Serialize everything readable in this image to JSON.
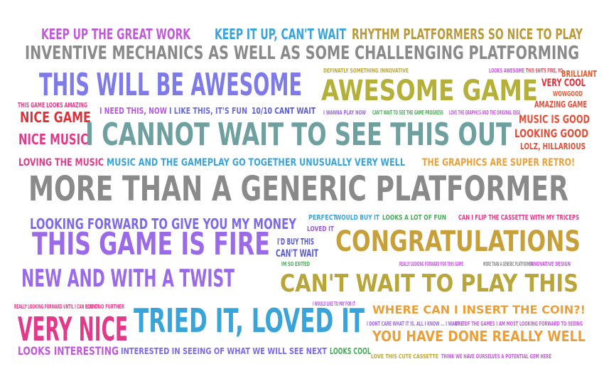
{
  "phrases": [
    {
      "text": "KEEP UP THE GREAT WORK",
      "color": "#c05ad6"
    },
    {
      "text": "KEEP IT UP, CAN'T WAIT",
      "color": "#3aa3d8"
    },
    {
      "text": "RHYTHM PLATFORMERS SO NICE TO PLAY",
      "color": "#b89a3c"
    },
    {
      "text": "INVENTIVE MECHANICS AS WELL AS SOME CHALLENGING PLATFORMING",
      "color": "#8a8a8a"
    },
    {
      "text": "DEFINATLY SOMETHING INNOVATIVE",
      "color": "#b8a63a"
    },
    {
      "text": "LOOKS AWESOME",
      "color": "#c05ad6"
    },
    {
      "text": "THIS SHITS FIRE, YO",
      "color": "#e0455a"
    },
    {
      "text": "BRILLIANT",
      "color": "#e35a2a"
    },
    {
      "text": "THIS WILL BE AWESOME",
      "color": "#7e7ae8"
    },
    {
      "text": "AWESOME GAME",
      "color": "#b4b03a"
    },
    {
      "text": "VERY COOL",
      "color": "#e0303a"
    },
    {
      "text": "WOWGOOD",
      "color": "#e05a3a"
    },
    {
      "text": "AMAZING GAME",
      "color": "#e0503a"
    },
    {
      "text": "THIS GAME LOOKS AMAZING",
      "color": "#e03a8a"
    },
    {
      "text": "I NEED THIS, NOW",
      "color": "#b45ae0"
    },
    {
      "text": "I LIKE THIS, IT'S FUN",
      "color": "#6a6ae0"
    },
    {
      "text": "10/10 CANT WAIT",
      "color": "#5a5ae8"
    },
    {
      "text": "I WANNA PLAY NOW",
      "color": "#9a6ad8"
    },
    {
      "text": "CAN'T WAIT TO SEE THE GAME PROGRESS",
      "color": "#4aaa5a"
    },
    {
      "text": "LOVE THE GRAPHICS AND THE ORIGINAL IDEA",
      "color": "#c05ad6"
    },
    {
      "text": "NICE GAME",
      "color": "#e0303a"
    },
    {
      "text": "I CANNOT WAIT TO SEE THIS OUT",
      "color": "#6fa0a0"
    },
    {
      "text": "MUSIC IS GOOD",
      "color": "#e0503a"
    },
    {
      "text": "NICE MUSIC",
      "color": "#e03a8a"
    },
    {
      "text": "LOOKING GOOD",
      "color": "#e0503a"
    },
    {
      "text": "LOLZ, HILLARIOUS",
      "color": "#e0503a"
    },
    {
      "text": "LOVING THE MUSIC",
      "color": "#e03a8a"
    },
    {
      "text": "MUSIC AND THE GAMEPLAY GO TOGETHER UNUSUALLY VERY WELL",
      "color": "#3aa3d8"
    },
    {
      "text": "THE GRAPHICS ARE SUPER RETRO!",
      "color": "#e8a03a"
    },
    {
      "text": "MORE THAN A GENERIC PLATFORMER",
      "color": "#8a8a8a"
    },
    {
      "text": "LOOKING FORWARD TO GIVE YOU MY MONEY",
      "color": "#7e6ae8"
    },
    {
      "text": "PERFECT",
      "color": "#3aa3d8"
    },
    {
      "text": "WOULD BUY IT",
      "color": "#3aa3d8"
    },
    {
      "text": "LOOKS A LOT OF FUN",
      "color": "#4aaa5a"
    },
    {
      "text": "CAN I FLIP THE CASSETTE WITH MY TRICEPS",
      "color": "#e03a8a"
    },
    {
      "text": "LOVED IT",
      "color": "#9a5ad8"
    },
    {
      "text": "THIS GAME IS FIRE",
      "color": "#9a6ae8"
    },
    {
      "text": "CONGRATULATIONS",
      "color": "#c8a03a"
    },
    {
      "text": "I'D BUY THIS",
      "color": "#5a5ad8"
    },
    {
      "text": "CAN'T WAIT",
      "color": "#5a5ad8"
    },
    {
      "text": "IM SO EXITED",
      "color": "#4aaa5a"
    },
    {
      "text": "REALLY LOOKING FORWARD FOR THIS GAME",
      "color": "#c05ad6"
    },
    {
      "text": "MORE THAN A GENERIC PLATFORMER",
      "color": "#8a8a8a"
    },
    {
      "text": "INNOVATIVE DESIGN",
      "color": "#c05ad6"
    },
    {
      "text": "NEW AND WITH A TWIST",
      "color": "#9a6ae8"
    },
    {
      "text": "CAN'T WAIT TO PLAY THIS",
      "color": "#b8a63a"
    },
    {
      "text": "REALLY LOOKING FORWARD UNTIL I CAN PLAY IT",
      "color": "#e03a8a"
    },
    {
      "text": "LOOK NO FURTHER",
      "color": "#e03a8a"
    },
    {
      "text": "I WOULD LIKE TO PAY FOR IT",
      "color": "#b45ae0"
    },
    {
      "text": "WHERE CAN I INSERT THE COIN?!",
      "color": "#e8a03a"
    },
    {
      "text": "VERY NICE",
      "color": "#e03a8a"
    },
    {
      "text": "TRIED IT, LOVED IT",
      "color": "#3aa3d8"
    },
    {
      "text": "I DONT CARE WHAT IT IS, ALL I KNOW ... I WANT IT!",
      "color": "#9a6ad8"
    },
    {
      "text": "ONE OF THE GAMES I AM MOST LOOKING FORWARD TO SEEING",
      "color": "#c05ad6"
    },
    {
      "text": "YOU HAVE DONE REALLY WELL",
      "color": "#e8a03a"
    },
    {
      "text": "LOOKS INTERESTING",
      "color": "#c05ad6"
    },
    {
      "text": "INTERESTED IN SEEING OF WHAT WE WILL SEE NEXT",
      "color": "#7e6ae8"
    },
    {
      "text": "LOOKS COOL",
      "color": "#4aaa5a"
    },
    {
      "text": "LOVE THIS CUTE CASSETTE",
      "color": "#b8a63a"
    },
    {
      "text": "THINK WE HAVE OURSELVES A POTENTIAL GEM HERE",
      "color": "#c05ad6"
    }
  ]
}
